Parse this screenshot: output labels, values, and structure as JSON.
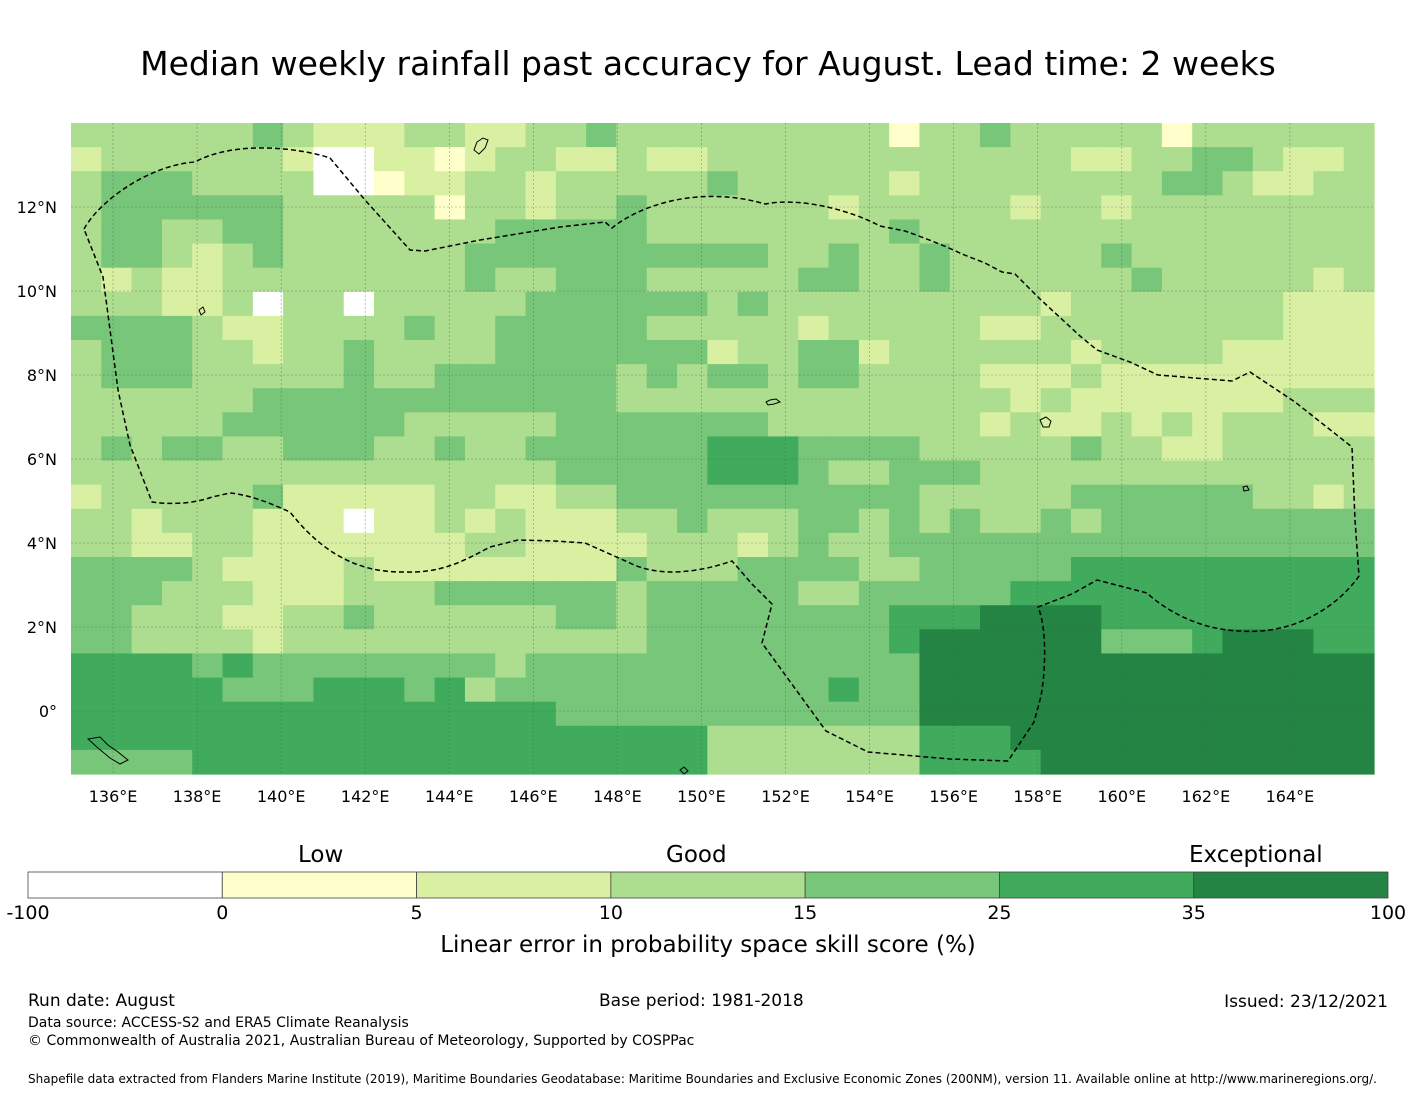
{
  "title": "Median weekly rainfall past accuracy for August. Lead time: 2 weeks",
  "chart_data": {
    "type": "heatmap",
    "map_extent": {
      "lon": [
        135.0,
        166.0
      ],
      "lat": [
        -1.5,
        14.0
      ]
    },
    "x_ticks": [
      "136°E",
      "138°E",
      "140°E",
      "142°E",
      "144°E",
      "146°E",
      "148°E",
      "150°E",
      "152°E",
      "154°E",
      "156°E",
      "158°E",
      "160°E",
      "162°E",
      "164°E"
    ],
    "x_tick_values": [
      136,
      138,
      140,
      142,
      144,
      146,
      148,
      150,
      152,
      154,
      156,
      158,
      160,
      162,
      164
    ],
    "y_ticks": [
      "12°N",
      "10°N",
      "8°N",
      "6°N",
      "4°N",
      "2°N",
      "0°"
    ],
    "y_tick_values": [
      12,
      10,
      8,
      6,
      4,
      2,
      0
    ],
    "grid": true,
    "cell_degrees": 0.8333,
    "grid_rows_north_to_south": [
      "3333334322233223343333333331334333331333333",
      "2333333200221233223223333333333332233443223",
      "3444333300122332333334333332333333334432233",
      "3444444333331332334333333233333233233333333",
      "3443344333333344444333333334333333333333333",
      "3443234333333444444444433433433333433333333",
      "3232233333333433444333334433433333343333323",
      "3332230330333334444443433333333323333333222",
      "4444322333343344444333332333332233333333222",
      "3444332334333344444442334423333332333322222",
      "3444333334334444443434434433332223222222222",
      "3333334444444444443333333333333232222222333",
      "3333344444433333444444433333332322323233322",
      "3434433444334334444445554444333334332233333",
      "3333333333333333444445554334443333333333333",
      "2333334222223322334444444444333334444443323",
      "3323332220223232223343334434343343444444444",
      "3322332222222332222333234334444444444444444",
      "4444322223222222224333444433444445555555555",
      "4443332223334444443444443344444555555555555",
      "4433322334333333443444444445556666555555555",
      "4433332333333333333444444445666666444566655",
      "5555454444444434444444444444666666666666666",
      "5555544455545344444444444544666666666666666",
      "5555555555555555444444444444666666666666666",
      "5555555555555555555553333333555666666666666",
      "4444555555555555555553333333555566666666666"
    ],
    "colorbar": {
      "boundaries": [
        "-100",
        "0",
        "5",
        "10",
        "15",
        "25",
        "35",
        "100"
      ],
      "colors": [
        "#ffffff",
        "#ffffcc",
        "#d9f0a3",
        "#addd8e",
        "#78c679",
        "#41ab5d",
        "#238443"
      ],
      "categories": [
        "Low",
        "Good",
        "Exceptional"
      ],
      "label": "Linear error in probability space skill score (%)"
    },
    "outlines": [
      "dashed EEZ boundary of the Federated States of Micronesia",
      "coastlines"
    ]
  },
  "footer": {
    "run_date": "Run date: August",
    "base_period": "Base period: 1981-2018",
    "issued": "Issued: 23/12/2021",
    "data_source": "Data source: ACCESS-S2 and ERA5 Climate Reanalysis",
    "copyright": "© Commonwealth of Australia 2021, Australian Bureau of Meteorology, Supported by COSPPac",
    "shapefile": "Shapefile data extracted from Flanders Marine Institute (2019), Maritime Boundaries Geodatabase: Maritime Boundaries and Exclusive Economic Zones (200NM), version 11. Available online at http://www.marineregions.org/."
  }
}
